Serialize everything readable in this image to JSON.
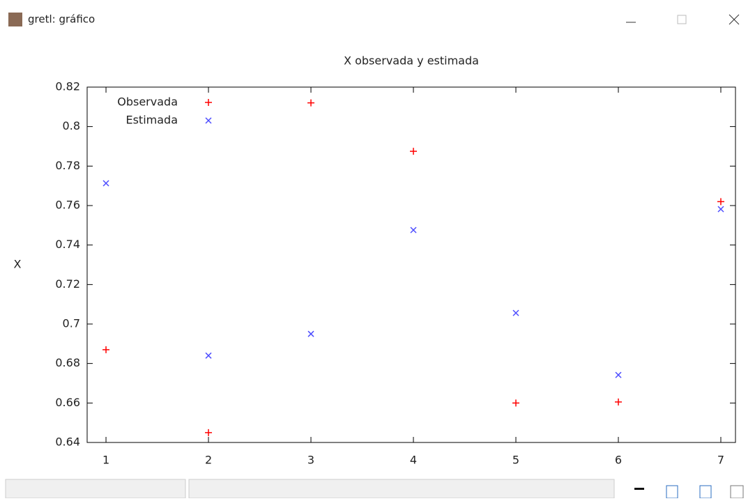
{
  "window": {
    "title": "gretl: gráfico"
  },
  "chart_data": {
    "type": "scatter",
    "title": "X observada y estimada",
    "y_label": "X",
    "x": [
      1,
      2,
      3,
      4,
      5,
      6,
      7
    ],
    "series": [
      {
        "name": "Observada",
        "color": "#ff0000",
        "marker": "plus",
        "values": [
          0.687,
          0.645,
          0.812,
          0.7875,
          0.66,
          0.6605,
          0.762
        ]
      },
      {
        "name": "Estimada",
        "color": "#4d4dff",
        "marker": "cross",
        "values": [
          0.7713,
          0.684,
          0.695,
          0.7476,
          0.7056,
          0.6742,
          0.7582
        ]
      }
    ],
    "xlim": [
      0.816,
      7.143
    ],
    "xticks": [
      1,
      2,
      3,
      4,
      5,
      6,
      7
    ],
    "ylim": [
      0.64,
      0.82
    ],
    "yticks": [
      0.64,
      0.66,
      0.68,
      0.7,
      0.72,
      0.74,
      0.76,
      0.78,
      0.8,
      0.82
    ],
    "legend": "top-left"
  }
}
